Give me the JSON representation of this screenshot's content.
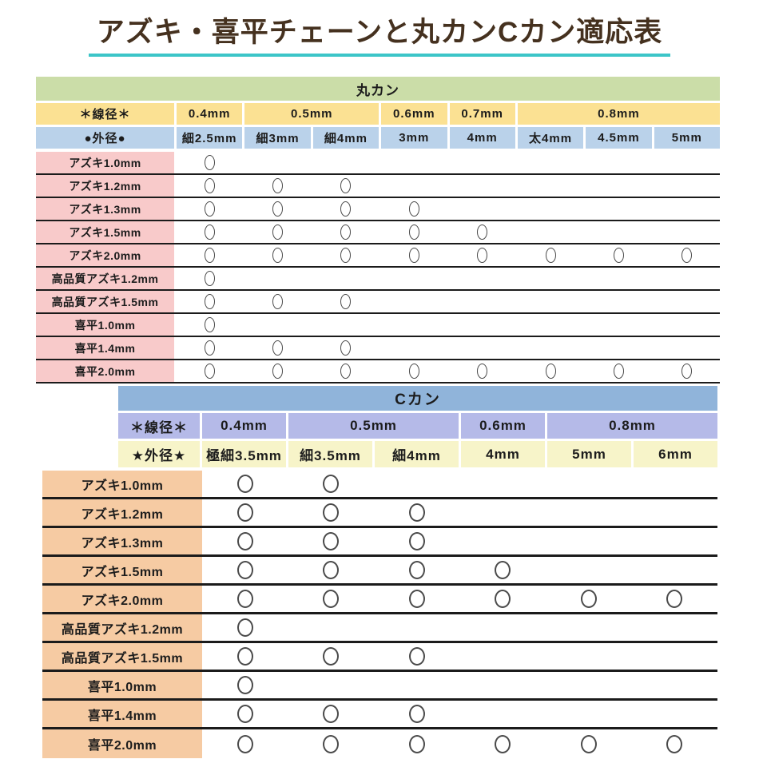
{
  "page_title": "アズキ・喜平チェーンと丸カンCカン適応表",
  "mark_symbol": "○",
  "mark_meaning": "compatible",
  "colors": {
    "title_text": "#45311f",
    "title_underline": "#3cc5c8",
    "maru_header_green": "#cbdda8",
    "maru_wire_yellow": "#fbe193",
    "maru_outer_blue": "#bad2ea",
    "maru_label_pink": "#f8caca",
    "c_header_blue": "#90b4da",
    "c_wire_purple": "#b5bae8",
    "c_outer_yellow": "#f7f4c9",
    "c_label_orange": "#f6cba3",
    "row_line": "#1b1b1b",
    "mark_stroke": "#4a4a4a"
  },
  "chart_data": [
    {
      "type": "table",
      "title": "丸カン",
      "wire_row_label": "＊線径＊",
      "outer_row_label": "●外径●",
      "wire_groups": [
        {
          "label": "0.4mm",
          "span": 1
        },
        {
          "label": "0.5mm",
          "span": 2
        },
        {
          "label": "0.6mm",
          "span": 1
        },
        {
          "label": "0.7mm",
          "span": 1
        },
        {
          "label": "0.8mm",
          "span": 3
        }
      ],
      "outer_columns": [
        "細2.5mm",
        "細3mm",
        "細4mm",
        "3mm",
        "4mm",
        "太4mm",
        "4.5mm",
        "5mm"
      ],
      "rows": [
        {
          "label": "アズキ1.0mm",
          "marks": [
            1,
            0,
            0,
            0,
            0,
            0,
            0,
            0
          ]
        },
        {
          "label": "アズキ1.2mm",
          "marks": [
            1,
            1,
            1,
            0,
            0,
            0,
            0,
            0
          ]
        },
        {
          "label": "アズキ1.3mm",
          "marks": [
            1,
            1,
            1,
            1,
            0,
            0,
            0,
            0
          ]
        },
        {
          "label": "アズキ1.5mm",
          "marks": [
            1,
            1,
            1,
            1,
            1,
            0,
            0,
            0
          ]
        },
        {
          "label": "アズキ2.0mm",
          "marks": [
            1,
            1,
            1,
            1,
            1,
            1,
            1,
            1
          ]
        },
        {
          "label": "高品質アズキ1.2mm",
          "marks": [
            1,
            0,
            0,
            0,
            0,
            0,
            0,
            0
          ]
        },
        {
          "label": "高品質アズキ1.5mm",
          "marks": [
            1,
            1,
            1,
            0,
            0,
            0,
            0,
            0
          ]
        },
        {
          "label": "喜平1.0mm",
          "marks": [
            1,
            0,
            0,
            0,
            0,
            0,
            0,
            0
          ]
        },
        {
          "label": "喜平1.4mm",
          "marks": [
            1,
            1,
            1,
            0,
            0,
            0,
            0,
            0
          ]
        },
        {
          "label": "喜平2.0mm",
          "marks": [
            1,
            1,
            1,
            1,
            1,
            1,
            1,
            1
          ]
        }
      ]
    },
    {
      "type": "table",
      "title": "Cカン",
      "wire_row_label": "＊線径＊",
      "outer_row_label": "★外径★",
      "wire_groups": [
        {
          "label": "0.4mm",
          "span": 1
        },
        {
          "label": "0.5mm",
          "span": 2
        },
        {
          "label": "0.6mm",
          "span": 1
        },
        {
          "label": "0.8mm",
          "span": 2
        }
      ],
      "outer_columns": [
        "極細3.5mm",
        "細3.5mm",
        "細4mm",
        "4mm",
        "5mm",
        "6mm"
      ],
      "rows": [
        {
          "label": "アズキ1.0mm",
          "marks": [
            1,
            1,
            0,
            0,
            0,
            0
          ]
        },
        {
          "label": "アズキ1.2mm",
          "marks": [
            1,
            1,
            1,
            0,
            0,
            0
          ]
        },
        {
          "label": "アズキ1.3mm",
          "marks": [
            1,
            1,
            1,
            0,
            0,
            0
          ]
        },
        {
          "label": "アズキ1.5mm",
          "marks": [
            1,
            1,
            1,
            1,
            0,
            0
          ]
        },
        {
          "label": "アズキ2.0mm",
          "marks": [
            1,
            1,
            1,
            1,
            1,
            1
          ]
        },
        {
          "label": "高品質アズキ1.2mm",
          "marks": [
            1,
            0,
            0,
            0,
            0,
            0
          ]
        },
        {
          "label": "高品質アズキ1.5mm",
          "marks": [
            1,
            1,
            1,
            0,
            0,
            0
          ]
        },
        {
          "label": "喜平1.0mm",
          "marks": [
            1,
            0,
            0,
            0,
            0,
            0
          ]
        },
        {
          "label": "喜平1.4mm",
          "marks": [
            1,
            1,
            1,
            0,
            0,
            0
          ]
        },
        {
          "label": "喜平2.0mm",
          "marks": [
            1,
            1,
            1,
            1,
            1,
            1
          ]
        }
      ]
    }
  ]
}
